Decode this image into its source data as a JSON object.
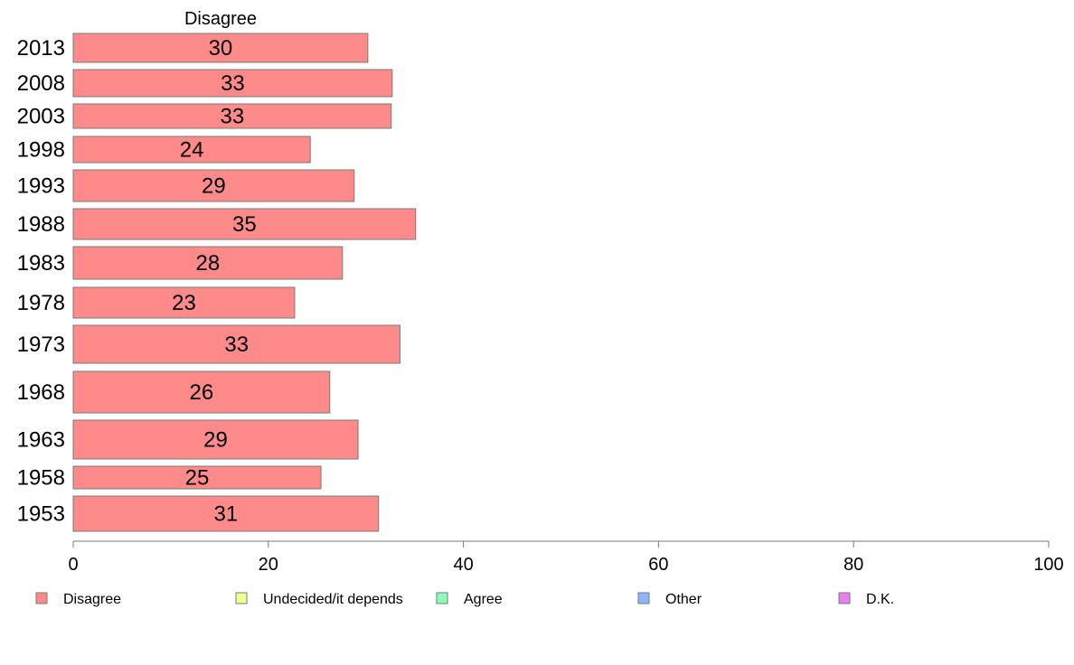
{
  "chart_data": {
    "type": "bar",
    "orientation": "horizontal",
    "title": "",
    "xlabel": "",
    "ylabel": "",
    "series_heading": "Disagree",
    "categories": [
      "2013",
      "2008",
      "2003",
      "1998",
      "1993",
      "1988",
      "1983",
      "1978",
      "1973",
      "1968",
      "1963",
      "1958",
      "1953"
    ],
    "series": [
      {
        "name": "Disagree",
        "color": "#ff8a8a",
        "values": [
          30.2,
          32.7,
          32.6,
          24.3,
          28.8,
          35.1,
          27.6,
          22.7,
          33.5,
          26.3,
          29.2,
          25.4,
          31.3
        ],
        "labels": [
          "30",
          "33",
          "33",
          "24",
          "29",
          "35",
          "28",
          "23",
          "33",
          "26",
          "29",
          "25",
          "31"
        ]
      }
    ],
    "xlim": [
      0,
      100
    ],
    "xticks": [
      0,
      20,
      40,
      60,
      80,
      100
    ],
    "grid": false,
    "legend": {
      "position": "bottom",
      "items": [
        {
          "label": "Disagree",
          "color": "#ff8a8a"
        },
        {
          "label": "Undecided/it depends",
          "color": "#f0ff90"
        },
        {
          "label": "Agree",
          "color": "#8affb8"
        },
        {
          "label": "Other",
          "color": "#8ab8ff"
        },
        {
          "label": "D.K.",
          "color": "#e87ef0"
        }
      ]
    }
  }
}
